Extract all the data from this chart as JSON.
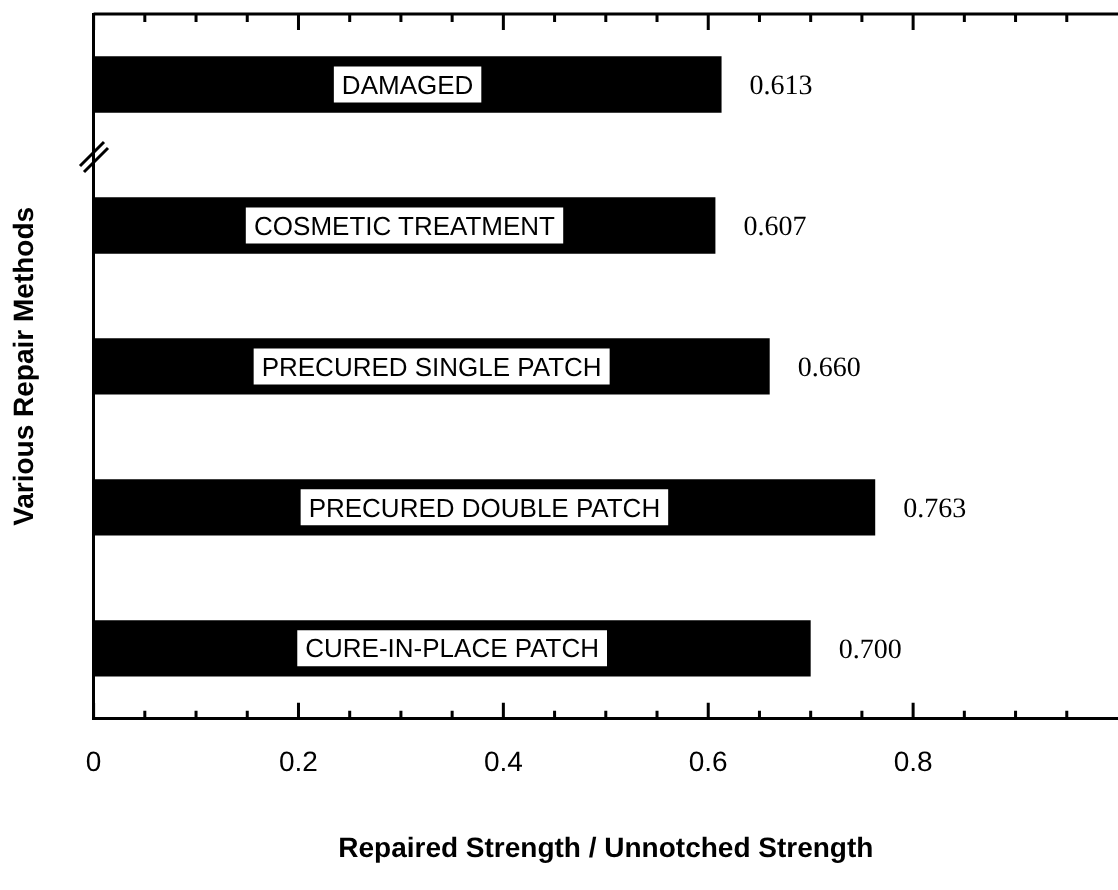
{
  "chart_data": {
    "type": "bar",
    "orientation": "horizontal",
    "xlabel": "Repaired Strength / Unnotched Strength",
    "ylabel": "Various Repair Methods",
    "categories": [
      "DAMAGED",
      "COSMETIC TREATMENT",
      "PRECURED SINGLE PATCH",
      "PRECURED DOUBLE PATCH",
      "CURE-IN-PLACE PATCH"
    ],
    "values": [
      0.613,
      0.607,
      0.66,
      0.763,
      0.7
    ],
    "value_labels": [
      "0.613",
      "0.607",
      "0.660",
      "0.763",
      "0.700"
    ],
    "color": "#000000",
    "xlim": [
      0,
      1
    ],
    "xticks": [
      0,
      {
        "value": 0.05,
        "label": null
      },
      {
        "value": 0.1,
        "label": null
      },
      {
        "value": 0.15,
        "label": null
      },
      0.2,
      {
        "value": 0.25,
        "label": null
      },
      {
        "value": 0.3,
        "label": null
      },
      {
        "value": 0.35,
        "label": null
      },
      0.4,
      {
        "value": 0.45,
        "label": null
      },
      {
        "value": 0.5,
        "label": null
      },
      {
        "value": 0.55,
        "label": null
      },
      0.6,
      {
        "value": 0.65,
        "label": null
      },
      {
        "value": 0.7,
        "label": null
      },
      {
        "value": 0.75,
        "label": null
      },
      0.8,
      {
        "value": 0.85,
        "label": null
      },
      {
        "value": 0.9,
        "label": null
      },
      {
        "value": 0.95,
        "label": null
      }
    ],
    "grid": false,
    "legend": false
  }
}
